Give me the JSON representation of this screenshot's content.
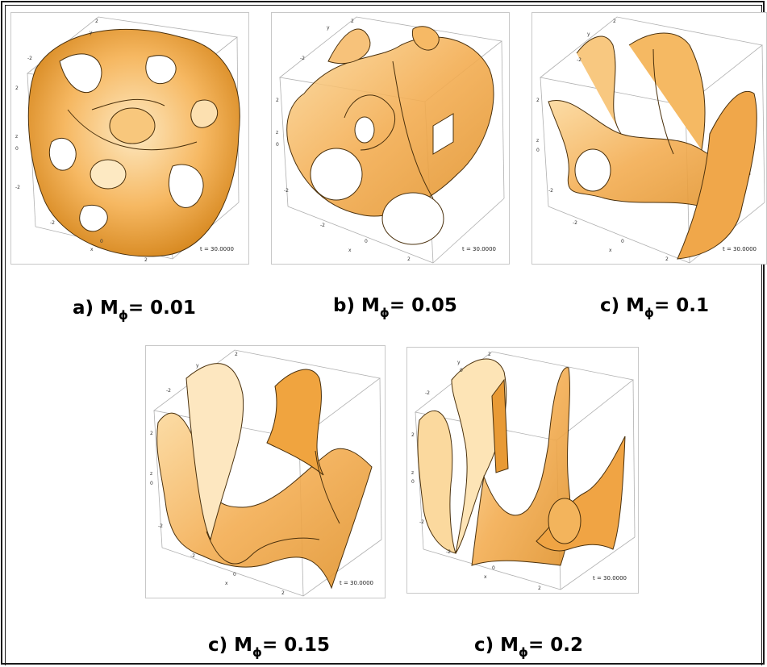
{
  "panels": [
    {
      "id": "a",
      "caption_prefix": "a) M",
      "caption_sub": "ϕ",
      "caption_value": "= 0.01",
      "time_label": "t = 30.0000"
    },
    {
      "id": "b",
      "caption_prefix": "b) M",
      "caption_sub": "ϕ",
      "caption_value": "= 0.05",
      "time_label": "t = 30.0000"
    },
    {
      "id": "c",
      "caption_prefix": "c) M",
      "caption_sub": "ϕ",
      "caption_value": "= 0.1",
      "time_label": "t = 30.0000"
    },
    {
      "id": "d",
      "caption_prefix": "c) M",
      "caption_sub": "ϕ",
      "caption_value": "= 0.15",
      "time_label": "t = 30.0000"
    },
    {
      "id": "e",
      "caption_prefix": "c) M",
      "caption_sub": "ϕ",
      "caption_value": "= 0.2",
      "time_label": "t = 30.0000"
    }
  ],
  "axis_ticks": {
    "neg": "-2",
    "zero": "0",
    "pos": "2",
    "x": "x",
    "y": "y",
    "z": "z"
  },
  "colors": {
    "surface_light": "#fde2b0",
    "surface_mid": "#f4b255",
    "surface_dark": "#d98a1e",
    "edge": "#3a2a10"
  }
}
